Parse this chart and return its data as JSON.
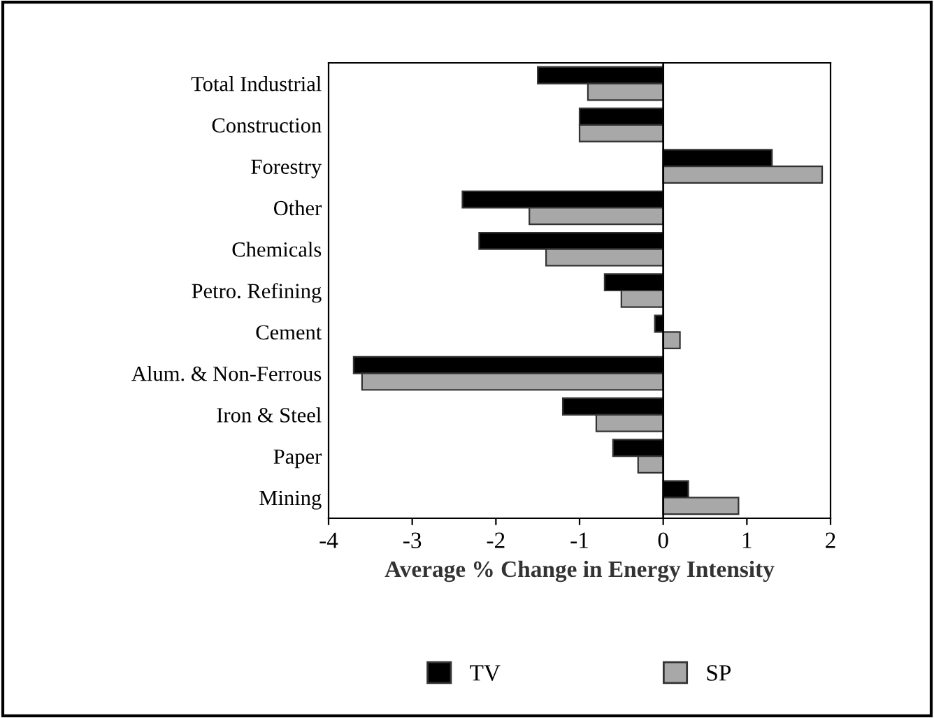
{
  "chart_data": {
    "type": "bar",
    "orientation": "horizontal",
    "xlabel": "Average % Change in Energy Intensity",
    "categories": [
      "Total Industrial",
      "Construction",
      "Forestry",
      "Other",
      "Chemicals",
      "Petro. Refining",
      "Cement",
      "Alum. & Non-Ferrous",
      "Iron & Steel",
      "Paper",
      "Mining"
    ],
    "series": [
      {
        "name": "TV",
        "color": "#000000",
        "values": [
          -1.5,
          -1.0,
          1.3,
          -2.4,
          -2.2,
          -0.7,
          -0.1,
          -3.7,
          -1.2,
          -0.6,
          0.3
        ]
      },
      {
        "name": "SP",
        "color": "#a8a8a8",
        "values": [
          -0.9,
          -1.0,
          1.9,
          -1.6,
          -1.4,
          -0.5,
          0.2,
          -3.6,
          -0.8,
          -0.3,
          0.9
        ]
      }
    ],
    "xlim": [
      -4,
      2
    ],
    "xticks": [
      -4,
      -3,
      -2,
      -1,
      0,
      1,
      2
    ],
    "grid": false,
    "ref_lines": [
      {
        "axis": "x",
        "value": 0,
        "color": "#000000"
      }
    ],
    "legend": "bottom"
  }
}
